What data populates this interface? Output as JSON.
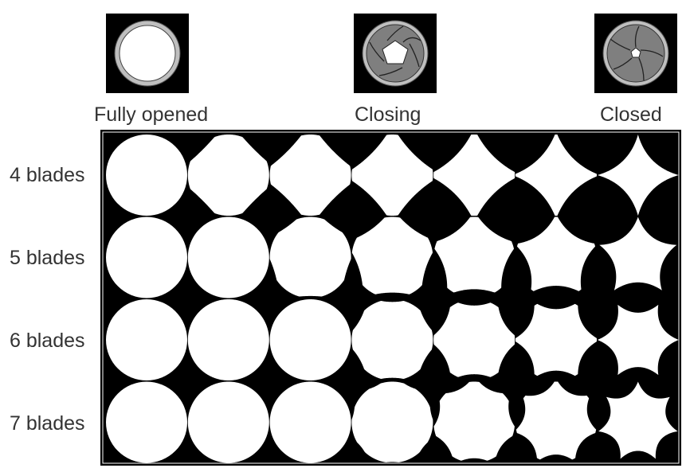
{
  "header": {
    "states": [
      {
        "label": "Fully opened",
        "aperture": 1.0
      },
      {
        "label": "Closing",
        "aperture": 0.45
      },
      {
        "label": "Closed",
        "aperture": 0.12
      }
    ]
  },
  "grid": {
    "rows": [
      {
        "label": "4 blades",
        "blades": 4
      },
      {
        "label": "5 blades",
        "blades": 5
      },
      {
        "label": "6 blades",
        "blades": 6
      },
      {
        "label": "7 blades",
        "blades": 7
      }
    ],
    "steps": 7
  },
  "colors": {
    "background": "#000000",
    "aperture": "#ffffff",
    "blade": "#7f7f7f",
    "ring": "#bfbfbf",
    "text": "#333333"
  }
}
